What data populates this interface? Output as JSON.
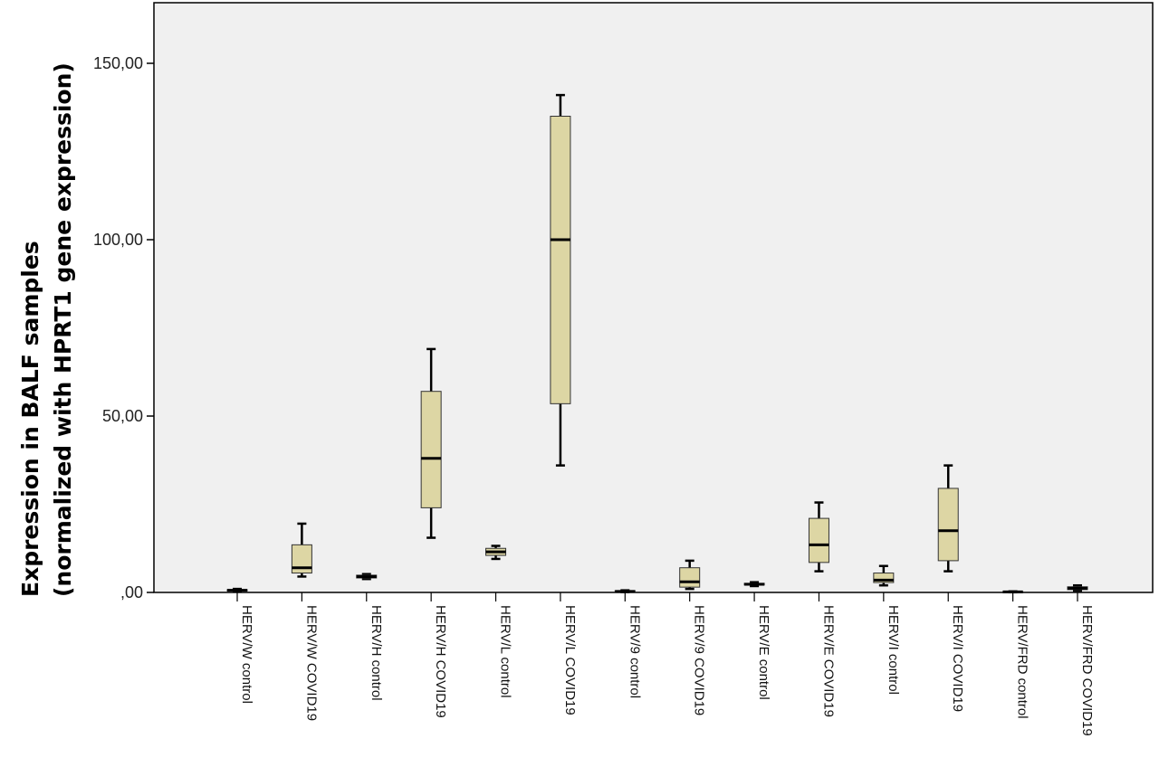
{
  "chart_data": {
    "type": "boxplot",
    "ylabel_line1": "Expression in BALF samples",
    "ylabel_line2": "(normalized with HPRT1  gene expression)",
    "ylim": [
      0,
      150
    ],
    "yticks": [
      {
        "value": 0,
        "label": ",00"
      },
      {
        "value": 50,
        "label": "50,00"
      },
      {
        "value": 100,
        "label": "100,00"
      },
      {
        "value": 150,
        "label": "150,00"
      }
    ],
    "colors": {
      "plot_bg": "#f0f0f0",
      "box_fill": "#ddd6a4",
      "line": "#000000"
    },
    "categories": [
      "HERV/W control",
      "HERV/W COVID19",
      "HERV/H control",
      "HERV/H COVID19",
      "HERV/L control",
      "HERV/L COVID19",
      "HERV/9 control",
      "HERV/9 COVID19",
      "HERV/E control",
      "HERV/E COVID19",
      "HERV/I control",
      "HERV/I COVID19",
      "HERV/FRD control",
      "HERV/FRD COVID19"
    ],
    "boxes": [
      {
        "min": 0.2,
        "q1": 0.4,
        "median": 0.6,
        "q3": 0.8,
        "max": 1.0
      },
      {
        "min": 4.5,
        "q1": 5.5,
        "median": 7.0,
        "q3": 13.5,
        "max": 19.5
      },
      {
        "min": 3.8,
        "q1": 4.1,
        "median": 4.5,
        "q3": 4.9,
        "max": 5.2
      },
      {
        "min": 15.5,
        "q1": 24.0,
        "median": 38.0,
        "q3": 57.0,
        "max": 69.0
      },
      {
        "min": 9.5,
        "q1": 10.5,
        "median": 11.5,
        "q3": 12.5,
        "max": 13.2
      },
      {
        "min": 36.0,
        "q1": 53.5,
        "median": 100.0,
        "q3": 135.0,
        "max": 141.0
      },
      {
        "min": 0.1,
        "q1": 0.2,
        "median": 0.3,
        "q3": 0.5,
        "max": 0.6
      },
      {
        "min": 1.0,
        "q1": 1.5,
        "median": 3.0,
        "q3": 7.0,
        "max": 9.0
      },
      {
        "min": 1.8,
        "q1": 2.1,
        "median": 2.3,
        "q3": 2.6,
        "max": 2.9
      },
      {
        "min": 6.0,
        "q1": 8.5,
        "median": 13.5,
        "q3": 21.0,
        "max": 25.5
      },
      {
        "min": 2.0,
        "q1": 2.8,
        "median": 3.5,
        "q3": 5.5,
        "max": 7.5
      },
      {
        "min": 6.0,
        "q1": 9.0,
        "median": 17.5,
        "q3": 29.5,
        "max": 36.0
      },
      {
        "min": 0.05,
        "q1": 0.1,
        "median": 0.15,
        "q3": 0.25,
        "max": 0.3
      },
      {
        "min": 0.5,
        "q1": 0.8,
        "median": 1.2,
        "q3": 1.6,
        "max": 2.0
      }
    ]
  }
}
